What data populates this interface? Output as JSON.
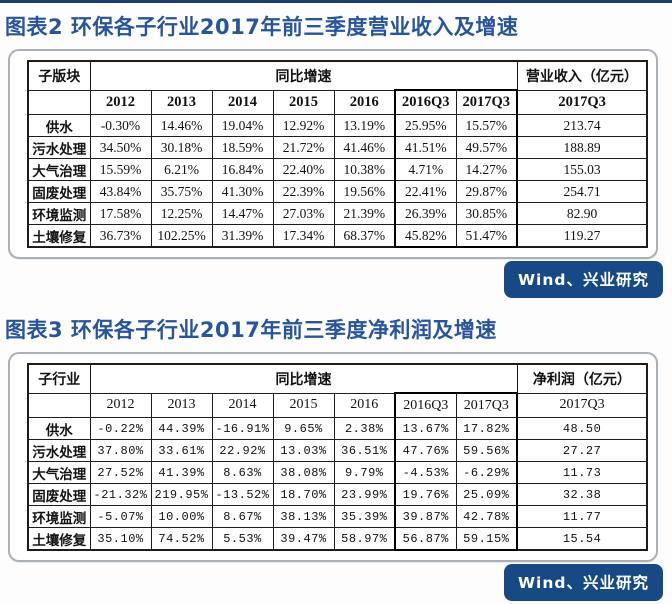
{
  "colors": {
    "title_blue": "#27549b",
    "badge_navy": "#174a85",
    "top_bar_navy": "#1c3f72",
    "table_border": "#1c1c1c",
    "panel_border": "#a9b0b6"
  },
  "sections": [
    {
      "title": "图表2 环保各子行业2017年前三季度营业收入及增速",
      "source": "Wind、兴业研究",
      "table": {
        "corner_header": "子版块",
        "group_header": "同比增速",
        "value_group_header": "营业收入（亿元）",
        "columns": [
          "2012",
          "2013",
          "2014",
          "2015",
          "2016",
          "2016Q3",
          "2017Q3"
        ],
        "value_column": "2017Q3",
        "highlight_columns": [
          "2016Q3",
          "2017Q3"
        ],
        "rows": [
          {
            "label": "供水",
            "growth": [
              "-0.30%",
              "14.46%",
              "19.04%",
              "12.92%",
              "13.19%",
              "25.95%",
              "15.57%"
            ],
            "value": "213.74"
          },
          {
            "label": "污水处理",
            "growth": [
              "34.50%",
              "30.18%",
              "18.59%",
              "21.72%",
              "41.46%",
              "41.51%",
              "49.57%"
            ],
            "value": "188.89"
          },
          {
            "label": "大气治理",
            "growth": [
              "15.59%",
              "6.21%",
              "16.84%",
              "22.40%",
              "10.38%",
              "4.71%",
              "14.27%"
            ],
            "value": "155.03"
          },
          {
            "label": "固废处理",
            "growth": [
              "43.84%",
              "35.75%",
              "41.30%",
              "22.39%",
              "19.56%",
              "22.41%",
              "29.87%"
            ],
            "value": "254.71"
          },
          {
            "label": "环境监测",
            "growth": [
              "17.58%",
              "12.25%",
              "14.47%",
              "27.03%",
              "21.39%",
              "26.39%",
              "30.85%"
            ],
            "value": "82.90"
          },
          {
            "label": "土壤修复",
            "growth": [
              "36.73%",
              "102.25%",
              "31.39%",
              "17.34%",
              "68.37%",
              "45.82%",
              "51.47%"
            ],
            "value": "119.27"
          }
        ]
      }
    },
    {
      "title": "图表3 环保各子行业2017年前三季度净利润及增速",
      "source": "Wind、兴业研究",
      "table": {
        "corner_header": "子行业",
        "group_header": "同比增速",
        "value_group_header": "净利润（亿元）",
        "columns": [
          "2012",
          "2013",
          "2014",
          "2015",
          "2016",
          "2016Q3",
          "2017Q3"
        ],
        "value_column": "2017Q3",
        "highlight_columns": [
          "2016Q3",
          "2017Q3"
        ],
        "rows": [
          {
            "label": "供水",
            "growth": [
              "-0.22%",
              "44.39%",
              "-16.91%",
              "9.65%",
              "2.38%",
              "13.67%",
              "17.82%"
            ],
            "value": "48.50"
          },
          {
            "label": "污水处理",
            "growth": [
              "37.80%",
              "33.61%",
              "22.92%",
              "13.03%",
              "36.51%",
              "47.76%",
              "59.56%"
            ],
            "value": "27.27"
          },
          {
            "label": "大气治理",
            "growth": [
              "27.52%",
              "41.39%",
              "8.63%",
              "38.08%",
              "9.79%",
              "-4.53%",
              "-6.29%"
            ],
            "value": "11.73"
          },
          {
            "label": "固废处理",
            "growth": [
              "-21.32%",
              "219.95%",
              "-13.52%",
              "18.70%",
              "23.99%",
              "19.76%",
              "25.09%"
            ],
            "value": "32.38"
          },
          {
            "label": "环境监测",
            "growth": [
              "-5.07%",
              "10.00%",
              "8.67%",
              "38.13%",
              "35.39%",
              "39.87%",
              "42.78%"
            ],
            "value": "11.77"
          },
          {
            "label": "土壤修复",
            "growth": [
              "35.10%",
              "74.52%",
              "5.53%",
              "39.47%",
              "58.97%",
              "56.87%",
              "59.15%"
            ],
            "value": "15.54"
          }
        ]
      }
    }
  ]
}
